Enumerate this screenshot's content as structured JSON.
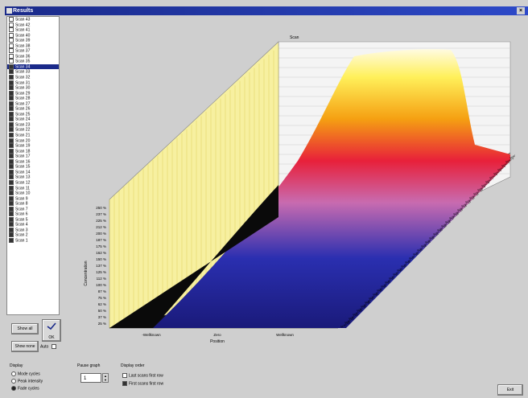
{
  "window": {
    "title": "Results",
    "close_glyph": "×"
  },
  "scans": {
    "items": [
      "Scan 43",
      "Scan 42",
      "Scan 41",
      "Scan 40",
      "Scan 39",
      "Scan 38",
      "Scan 37",
      "Scan 36",
      "Scan 35",
      "Scan 34",
      "Scan 33",
      "Scan 32",
      "Scan 31",
      "Scan 30",
      "Scan 29",
      "Scan 28",
      "Scan 27",
      "Scan 26",
      "Scan 25",
      "Scan 24",
      "Scan 23",
      "Scan 22",
      "Scan 21",
      "Scan 20",
      "Scan 19",
      "Scan 18",
      "Scan 17",
      "Scan 16",
      "Scan 15",
      "Scan 14",
      "Scan 13",
      "Scan 12",
      "Scan 11",
      "Scan 10",
      "Scan 9",
      "Scan 8",
      "Scan 7",
      "Scan 6",
      "Scan 5",
      "Scan 4",
      "Scan 3",
      "Scan 2",
      "Scan 1"
    ],
    "checked_from_index": 9,
    "selected_index": 9
  },
  "buttons": {
    "show_all": "Show all",
    "show_none": "Show none",
    "ok": "OK",
    "auto": "Auto",
    "exit": "Exit"
  },
  "display_group": {
    "label": "Display",
    "options": [
      "Mode cycles",
      "Peak intensity",
      "Fade cycles"
    ],
    "selected": 2
  },
  "pause_group": {
    "label": "Pause graph",
    "value": "1"
  },
  "display_order": {
    "label": "Display order",
    "options": [
      "Last scans first row",
      "First scans first row"
    ],
    "checked": [
      false,
      true
    ]
  },
  "graph": {
    "top_label": "Scan",
    "ylabel": "Concentration",
    "xlabel": "Position",
    "x_ticks": [
      "-Wellknown",
      "Zero",
      "Wellknown"
    ],
    "y_ticks": [
      "250 %",
      "237 %",
      "225 %",
      "212 %",
      "200 %",
      "187 %",
      "175 %",
      "162 %",
      "150 %",
      "137 %",
      "125 %",
      "112 %",
      "100 %",
      "87 %",
      "75 %",
      "62 %",
      "50 %",
      "37 %",
      "25 %"
    ]
  }
}
